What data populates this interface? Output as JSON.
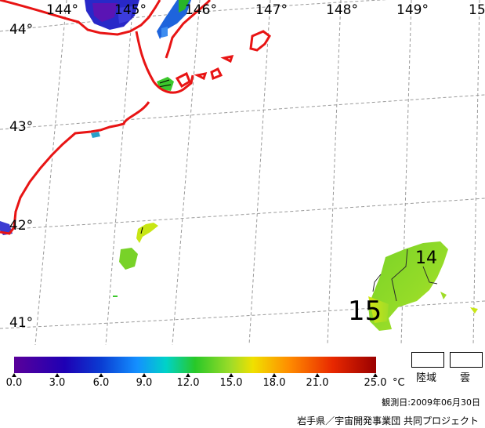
{
  "map": {
    "longitude_labels": [
      "144°",
      "145°",
      "146°",
      "147°",
      "148°",
      "149°",
      "15"
    ],
    "latitude_labels": [
      "44°",
      "43°",
      "42°",
      "41°"
    ],
    "contour_labels": [
      "14",
      "15"
    ],
    "coastline_color": "#e81414",
    "grid_color": "#9a9a9a"
  },
  "legend": {
    "ticks": [
      "0.0",
      "3.0",
      "6.0",
      "9.0",
      "12.0",
      "15.0",
      "18.0",
      "21.0",
      "25.0"
    ],
    "unit": "°C",
    "colors": [
      "#5a009a",
      "#0a0aa8",
      "#1478ff",
      "#00c8d8",
      "#28c828",
      "#a0dc28",
      "#f0e000",
      "#ff8000",
      "#e82800",
      "#9a0000"
    ]
  },
  "swatches": {
    "land_label": "陸域",
    "cloud_label": "雲"
  },
  "footer": {
    "observation_date": "観測日:2009年06月30日",
    "credit": "岩手県／宇宙開発事業団 共同プロジェクト"
  }
}
